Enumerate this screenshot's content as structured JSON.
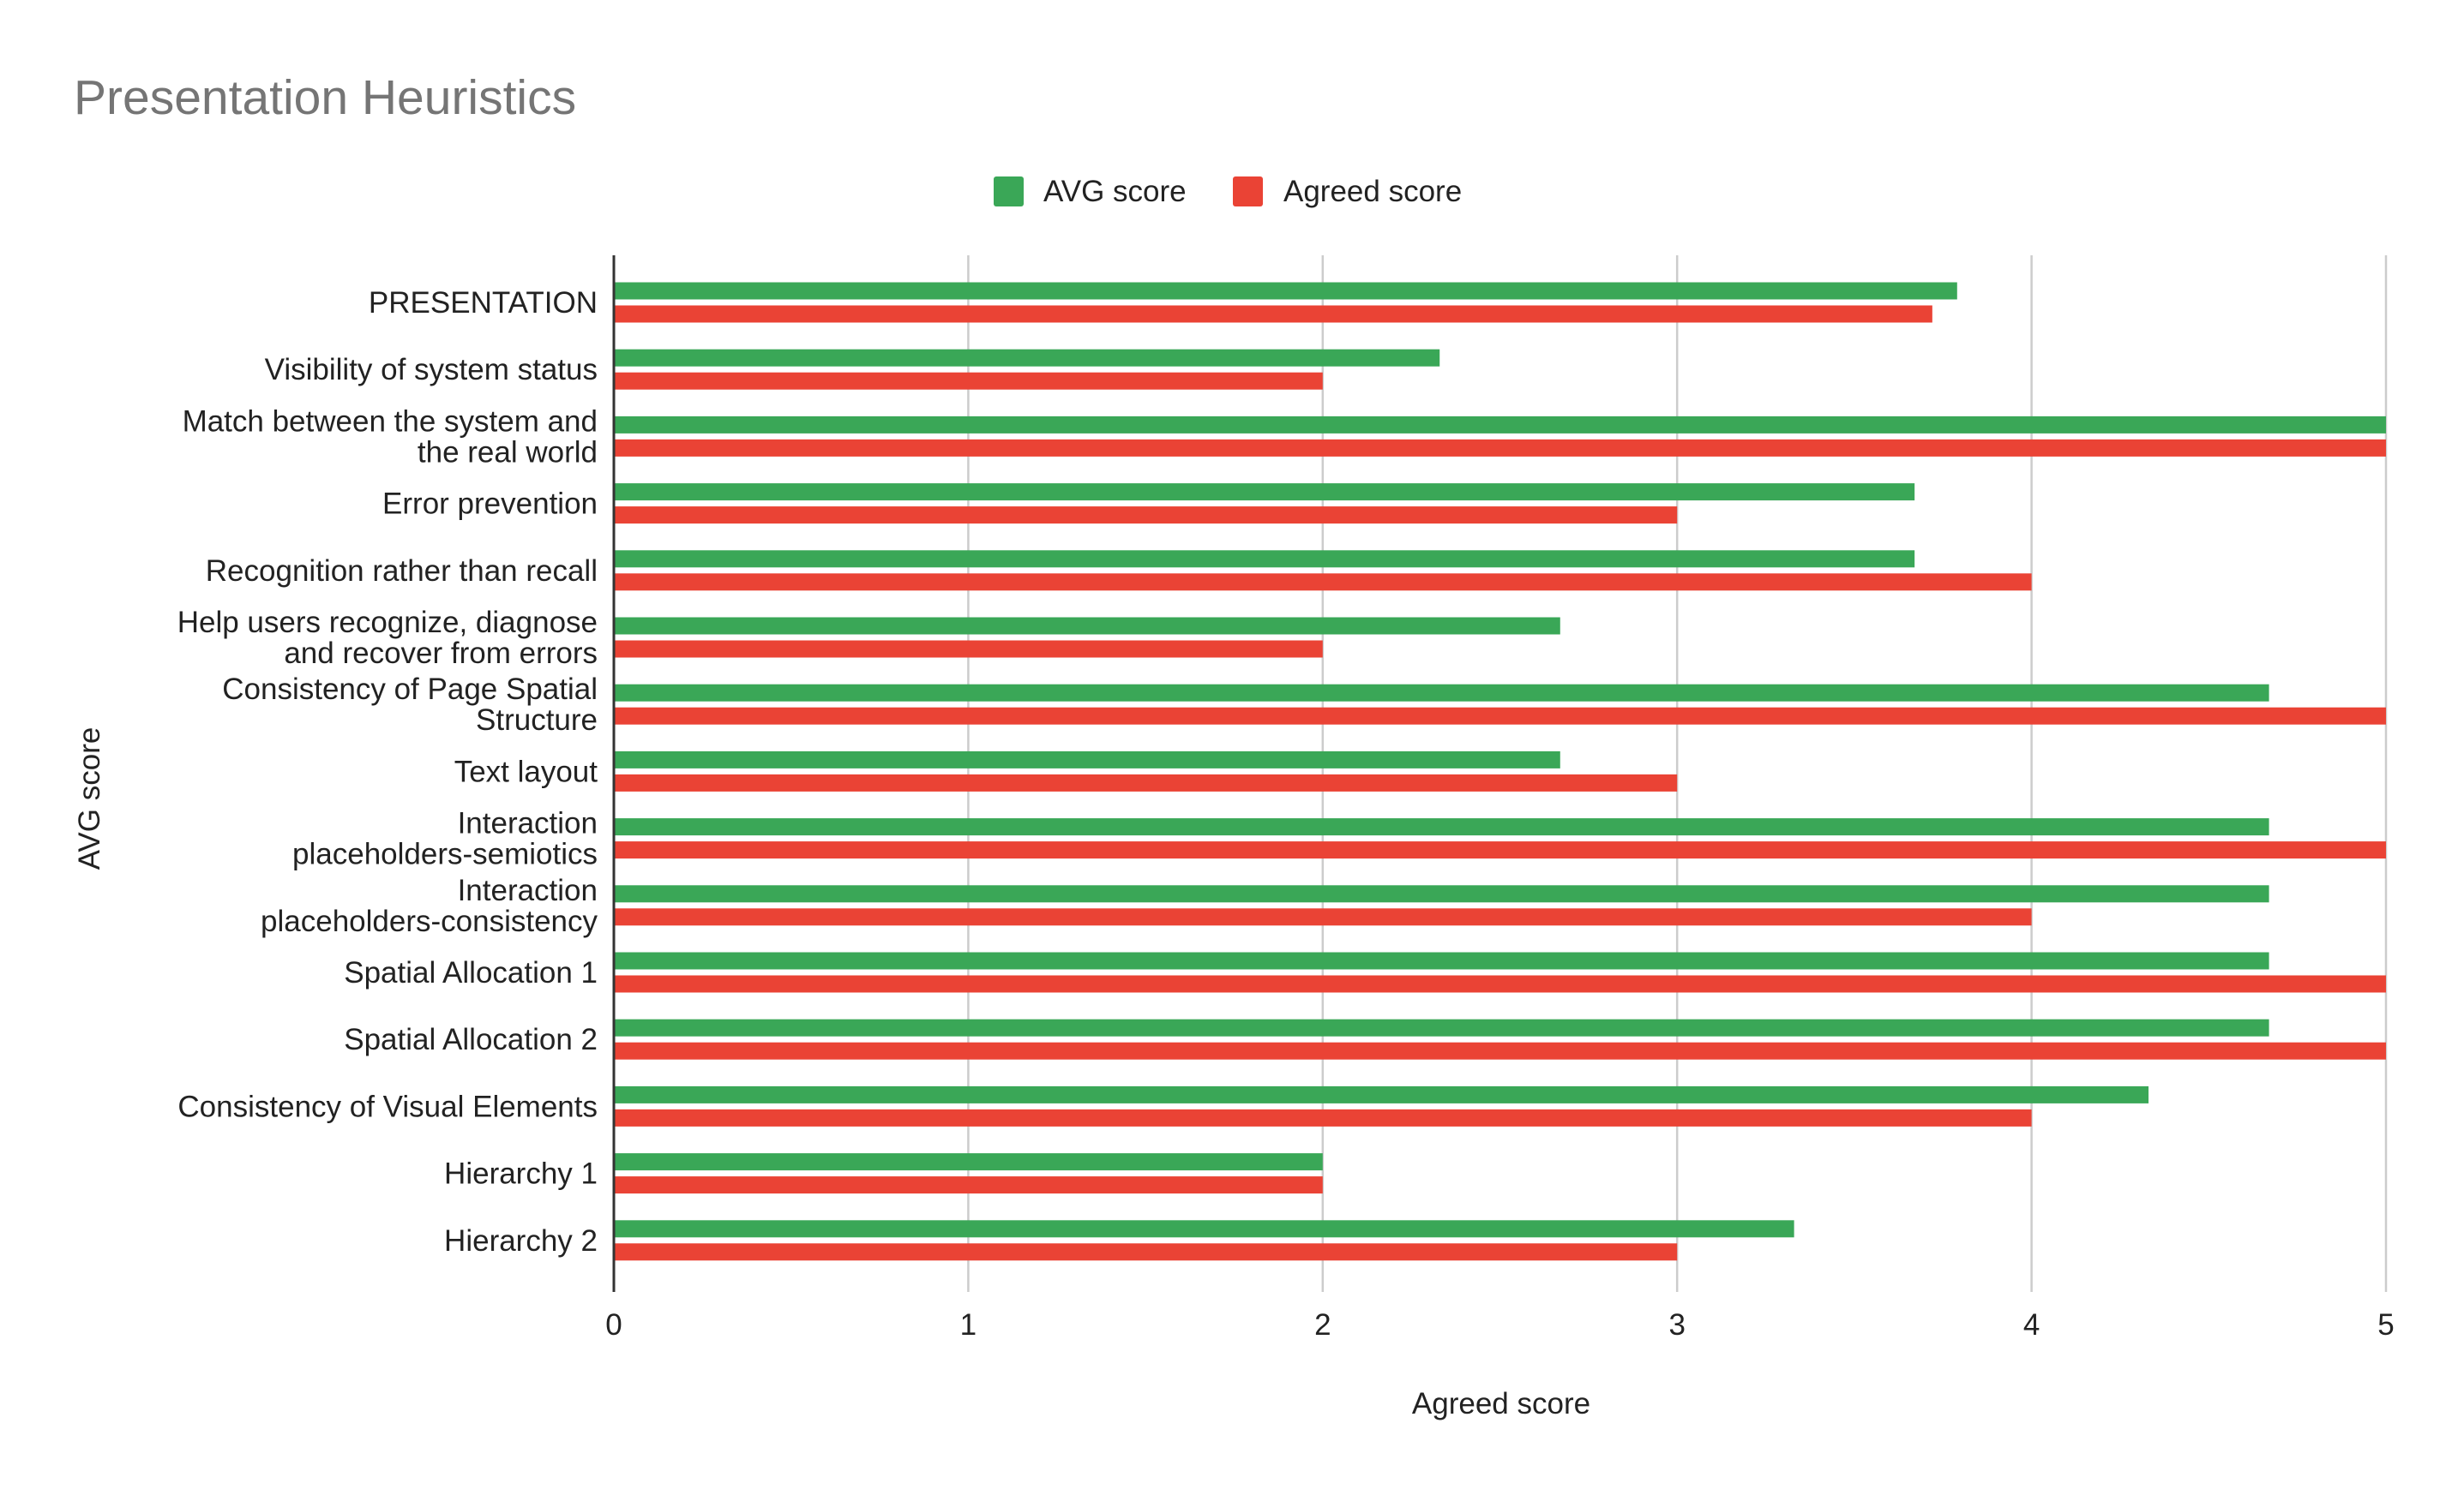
{
  "chart_data": {
    "type": "bar",
    "orientation": "horizontal",
    "title": "Presentation Heuristics",
    "xlabel": "Agreed score",
    "ylabel": "AVG score",
    "xlim": [
      0,
      5
    ],
    "xticks": [
      "0",
      "1",
      "2",
      "3",
      "4",
      "5"
    ],
    "grid": true,
    "legend_position": "top",
    "categories": [
      [
        "PRESENTATION"
      ],
      [
        "Visibility of system status"
      ],
      [
        "Match between the system and",
        "the real world"
      ],
      [
        "Error prevention"
      ],
      [
        "Recognition rather than recall"
      ],
      [
        "Help users recognize, diagnose",
        "and recover from errors"
      ],
      [
        "Consistency of Page Spatial",
        "Structure"
      ],
      [
        "Text layout"
      ],
      [
        "Interaction",
        "placeholders-semiotics"
      ],
      [
        "Interaction",
        "placeholders-consistency"
      ],
      [
        "Spatial Allocation 1"
      ],
      [
        "Spatial Allocation 2"
      ],
      [
        "Consistency of Visual Elements"
      ],
      [
        "Hierarchy 1"
      ],
      [
        "Hierarchy 2"
      ]
    ],
    "series": [
      {
        "name": "AVG score",
        "color": "#3aa757",
        "values": [
          3.79,
          2.33,
          5.0,
          3.67,
          3.67,
          2.67,
          4.67,
          2.67,
          4.67,
          4.67,
          4.67,
          4.67,
          4.33,
          2.0,
          3.33
        ]
      },
      {
        "name": "Agreed score",
        "color": "#ea4335",
        "values": [
          3.72,
          2.0,
          5.0,
          3.0,
          4.0,
          2.0,
          5.0,
          3.0,
          5.0,
          4.0,
          5.0,
          5.0,
          4.0,
          2.0,
          3.0
        ]
      }
    ]
  }
}
